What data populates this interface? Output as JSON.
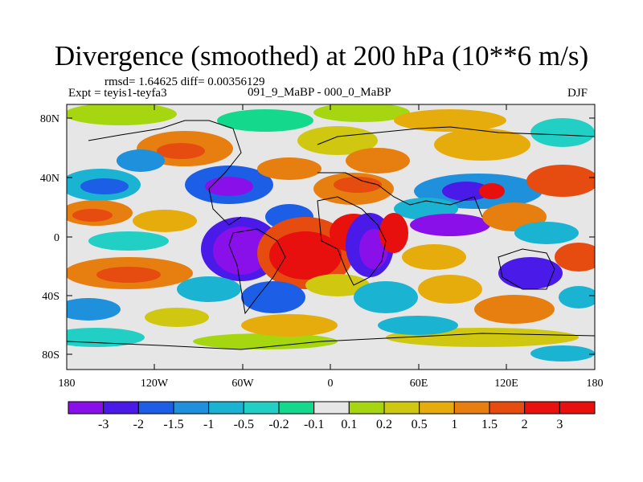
{
  "title": "Divergence (smoothed) at 200 hPa (10**6 m/s)",
  "stats": "rmsd= 1.64625 diff= 0.00356129",
  "expt": "Expt = teyis1-teyfa3",
  "run": "091_9_MaBP - 000_0_MaBP",
  "season": "DJF",
  "lat_labels": [
    "80N",
    "40N",
    "0",
    "40S",
    "80S"
  ],
  "lon_labels": [
    "180",
    "120W",
    "60W",
    "0",
    "60E",
    "120E",
    "180"
  ],
  "colorbar": {
    "labels": [
      "-3",
      "-2",
      "-1.5",
      "-1",
      "-0.5",
      "-0.2",
      "-0.1",
      "0.1",
      "0.2",
      "0.5",
      "1",
      "1.5",
      "2",
      "3"
    ],
    "colors": [
      "#8a10ea",
      "#4a1ae8",
      "#1c5ee6",
      "#1e90dc",
      "#1ab3d2",
      "#22cfc4",
      "#14d88c",
      "#e6e6e6",
      "#a6d610",
      "#cfc710",
      "#e6ac0c",
      "#e67e10",
      "#e64b10",
      "#e8110c",
      "#e80f0f"
    ]
  }
}
